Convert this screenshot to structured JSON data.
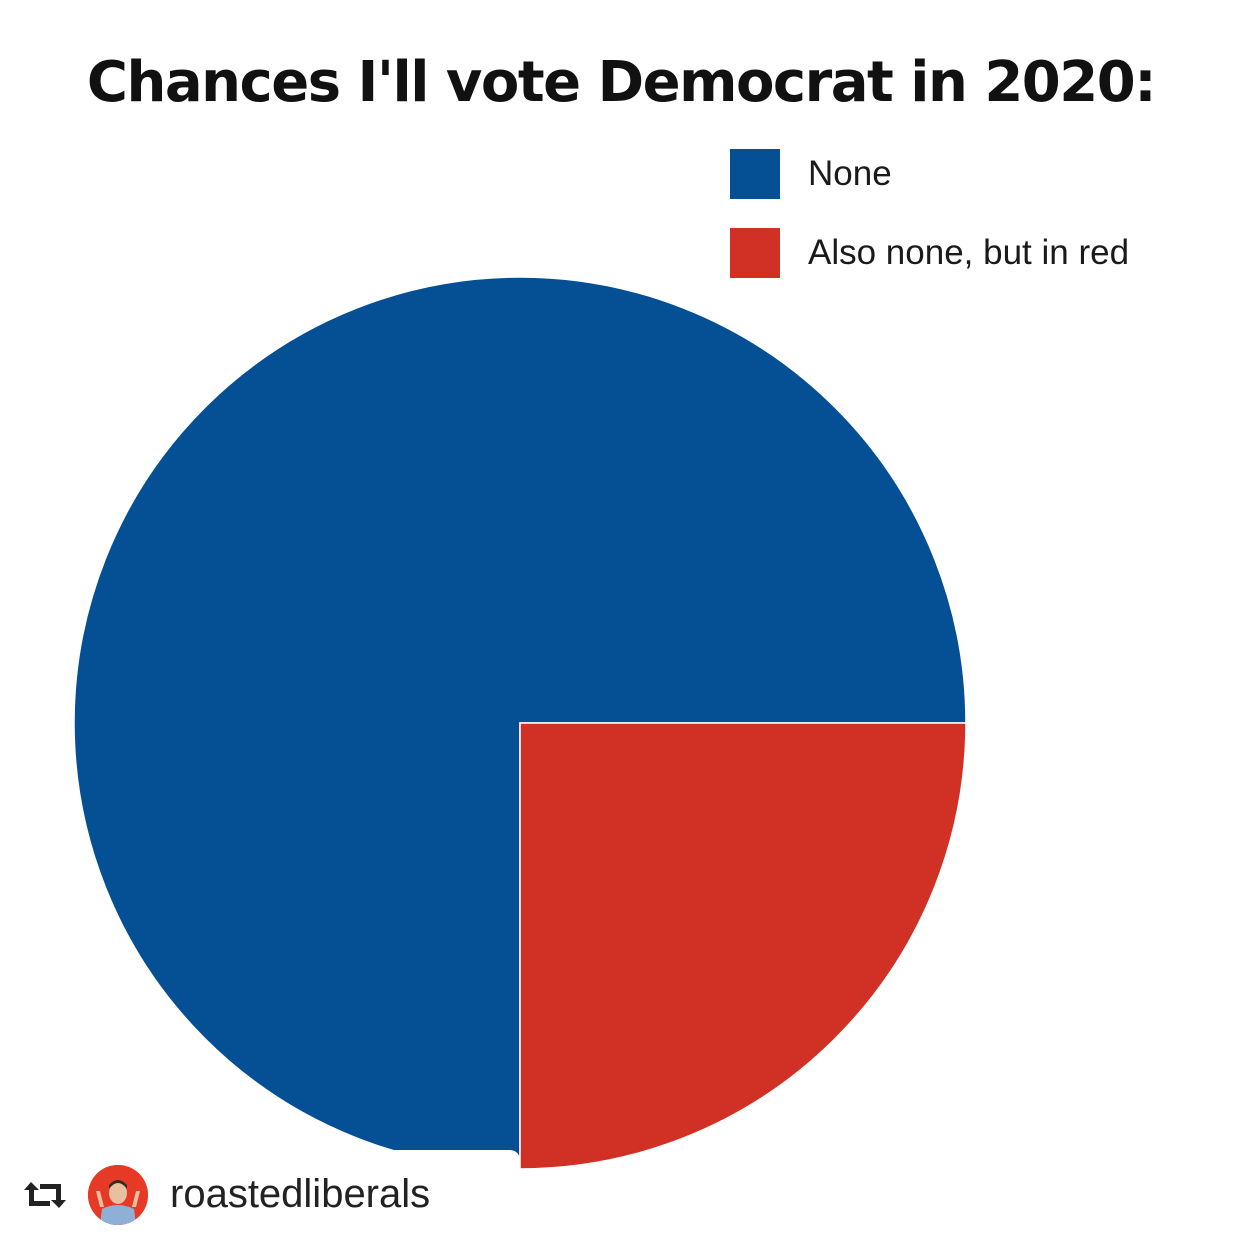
{
  "chart_data": {
    "type": "pie",
    "title": "Chances I'll vote Democrat in 2020:",
    "categories": [
      "None",
      "Also none, but in red"
    ],
    "values": [
      75,
      25
    ],
    "colors": [
      "#054f94",
      "#d13024"
    ],
    "legend_position": "top-right"
  },
  "repost": {
    "icon": "repost-icon",
    "username": "roastedliberals",
    "avatar_color": "#e63a26"
  }
}
